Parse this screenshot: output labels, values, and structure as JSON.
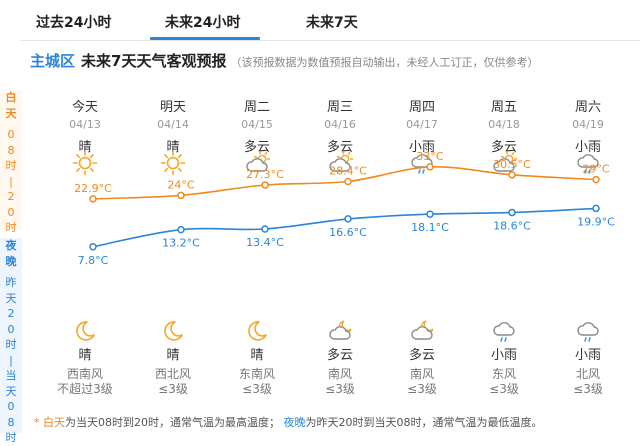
{
  "tabs": [
    {
      "label": "过去24小时",
      "active": false
    },
    {
      "label": "未来24小时",
      "active": true
    },
    {
      "label": "未来7天",
      "active": false
    }
  ],
  "header": {
    "district": "主城区",
    "title": "未来7天天气客观预报",
    "note": "（该预报数据为数值预报自动输出，未经人工订正，仅供参考）"
  },
  "side_labels": {
    "day": {
      "name": "白天",
      "range": "08时|20时"
    },
    "night": {
      "name": "夜晚",
      "range": "昨天20时|当天08时"
    }
  },
  "days": [
    {
      "weekday": "今天",
      "date": "04/13",
      "day_cond": "晴",
      "day_icon": "sun-icon",
      "high": "22.9°C",
      "low": "7.8°C",
      "night_cond": "晴",
      "night_icon": "moon-icon",
      "wind_dir": "西南风",
      "wind_level": "不超过3级"
    },
    {
      "weekday": "明天",
      "date": "04/14",
      "day_cond": "晴",
      "day_icon": "sun-icon",
      "high": "24°C",
      "low": "13.2°C",
      "night_cond": "晴",
      "night_icon": "moon-icon",
      "wind_dir": "西北风",
      "wind_level": "≤3级"
    },
    {
      "weekday": "周二",
      "date": "04/15",
      "day_cond": "多云",
      "day_icon": "cloud-sun-icon",
      "high": "27.3°C",
      "low": "13.4°C",
      "night_cond": "晴",
      "night_icon": "moon-icon",
      "wind_dir": "东南风",
      "wind_level": "≤3级"
    },
    {
      "weekday": "周三",
      "date": "04/16",
      "day_cond": "多云",
      "day_icon": "cloud-sun-icon",
      "high": "28.4°C",
      "low": "16.6°C",
      "night_cond": "多云",
      "night_icon": "cloud-moon-icon",
      "wind_dir": "南风",
      "wind_level": "≤3级"
    },
    {
      "weekday": "周四",
      "date": "04/17",
      "day_cond": "小雨",
      "day_icon": "rain-icon",
      "high": "33°C",
      "low": "18.1°C",
      "night_cond": "多云",
      "night_icon": "cloud-moon-icon",
      "wind_dir": "南风",
      "wind_level": "≤3级"
    },
    {
      "weekday": "周五",
      "date": "04/18",
      "day_cond": "多云",
      "day_icon": "cloud-sun-icon",
      "high": "30.5°C",
      "low": "18.6°C",
      "night_cond": "小雨",
      "night_icon": "rain-icon",
      "wind_dir": "东风",
      "wind_level": "≤3级"
    },
    {
      "weekday": "周六",
      "date": "04/19",
      "day_cond": "小雨",
      "day_icon": "rain-icon",
      "high": "29°C",
      "low": "19.9°C",
      "night_cond": "小雨",
      "night_icon": "rain-icon",
      "wind_dir": "北风",
      "wind_level": "≤3级"
    }
  ],
  "chart_data": {
    "type": "line",
    "categories": [
      "04/13",
      "04/14",
      "04/15",
      "04/16",
      "04/17",
      "04/18",
      "04/19"
    ],
    "series": [
      {
        "values": [
          22.9,
          24,
          27.3,
          28.4,
          33,
          30.5,
          29
        ],
        "color": "#f08a1c"
      },
      {
        "values": [
          7.8,
          13.2,
          13.4,
          16.6,
          18.1,
          18.6,
          19.9
        ],
        "color": "#2a85d8"
      }
    ],
    "unit": "°C"
  },
  "footer": {
    "star": "*",
    "day_term": "白天",
    "day_desc": "为当天08时到20时，通常气温为最高温度；",
    "night_term": "夜晚",
    "night_desc": "为昨天20时到当天08时，通常气温为最低温度。"
  },
  "colors": {
    "accent": "#2a85d8",
    "day": "#f08a1c",
    "night": "#2a85d8"
  }
}
